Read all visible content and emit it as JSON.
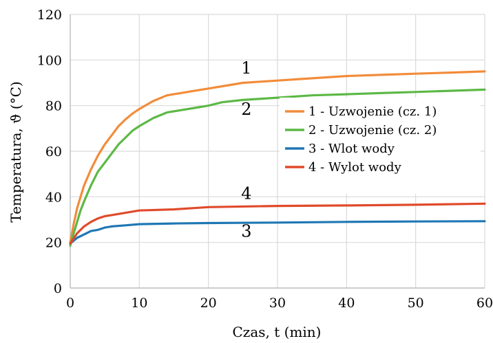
{
  "chart_data": {
    "type": "line",
    "title": "",
    "xlabel": "Czas, t (min)",
    "ylabel": "Temperatura, ϑ (°C)",
    "xlim": [
      0,
      60
    ],
    "ylim": [
      0,
      120
    ],
    "xticks": [
      0,
      10,
      20,
      30,
      40,
      50,
      60
    ],
    "yticks": [
      0,
      20,
      40,
      60,
      80,
      100,
      120
    ],
    "grid": true,
    "legend_position": "right",
    "series": [
      {
        "name": "1 - Uzwojenie (cz. 1)",
        "color": "#F28C3A",
        "x": [
          0,
          0.5,
          1,
          1.5,
          2,
          3,
          4,
          5,
          6,
          7,
          8,
          9,
          10,
          12,
          14,
          16,
          18,
          20,
          22,
          25,
          30,
          35,
          40,
          45,
          50,
          55,
          60
        ],
        "values": [
          20,
          28,
          35,
          40,
          45,
          52,
          58,
          63,
          67,
          71,
          74,
          76.5,
          78.5,
          82,
          84.5,
          85.5,
          86.5,
          87.5,
          88.5,
          90,
          91,
          92,
          93,
          93.5,
          94,
          94.5,
          95
        ]
      },
      {
        "name": "2 - Uzwojenie (cz. 2)",
        "color": "#5CB846",
        "x": [
          0,
          0.5,
          1,
          1.5,
          2,
          3,
          4,
          5,
          6,
          7,
          8,
          9,
          10,
          12,
          14,
          16,
          18,
          20,
          22,
          25,
          30,
          35,
          40,
          45,
          50,
          55,
          60
        ],
        "values": [
          18.5,
          24,
          29,
          34,
          38,
          45,
          51,
          55,
          59,
          63,
          66,
          69,
          71,
          74.5,
          77,
          78,
          79,
          80,
          81.5,
          82.5,
          83.5,
          84.5,
          85,
          85.5,
          86,
          86.5,
          87
        ]
      },
      {
        "name": "3 - Wlot wody",
        "color": "#1F77B4",
        "x": [
          0,
          1,
          2,
          3,
          4,
          5,
          6,
          8,
          10,
          15,
          20,
          30,
          40,
          50,
          60
        ],
        "values": [
          19.5,
          22,
          23.5,
          25,
          25.5,
          26.5,
          27,
          27.5,
          28,
          28.3,
          28.5,
          28.7,
          29,
          29.2,
          29.3
        ]
      },
      {
        "name": "4 - Wylot wody",
        "color": "#E04A2A",
        "x": [
          0,
          1,
          2,
          3,
          4,
          5,
          6,
          8,
          10,
          15,
          20,
          30,
          40,
          50,
          60
        ],
        "values": [
          19.5,
          24,
          27,
          29,
          30.5,
          31.5,
          32,
          33,
          34,
          34.5,
          35.5,
          36,
          36.2,
          36.5,
          37
        ]
      }
    ],
    "curve_labels": [
      {
        "text": "1",
        "x": 25,
        "y": 94
      },
      {
        "text": "2",
        "x": 25,
        "y": 76
      },
      {
        "text": "4",
        "x": 25,
        "y": 39
      },
      {
        "text": "3",
        "x": 25,
        "y": 22.5
      }
    ]
  }
}
